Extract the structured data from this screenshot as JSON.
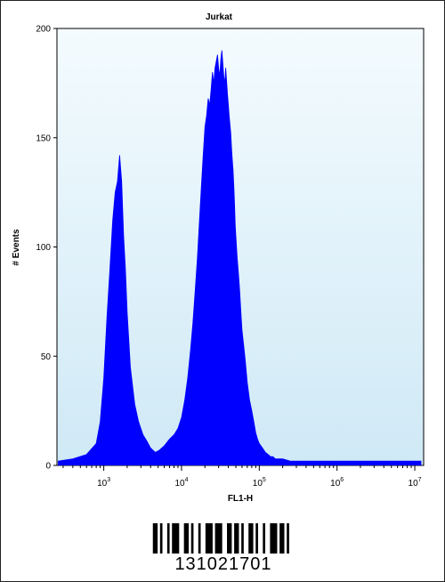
{
  "chart_data": {
    "type": "area",
    "title": "Jurkat",
    "xlabel": "FL1-H",
    "ylabel": "# Events",
    "x_scale": "log",
    "xlim": [
      250,
      13000000
    ],
    "ylim": [
      0,
      200
    ],
    "y_ticks": [
      0,
      50,
      100,
      150,
      200
    ],
    "x_ticks": [
      {
        "value": 1000,
        "base": "10",
        "exp": "3"
      },
      {
        "value": 10000,
        "base": "10",
        "exp": "4"
      },
      {
        "value": 100000,
        "base": "10",
        "exp": "5"
      },
      {
        "value": 1000000,
        "base": "10",
        "exp": "6"
      },
      {
        "value": 10000000,
        "base": "10",
        "exp": "7"
      }
    ],
    "series": [
      {
        "x": [
          260,
          400,
          600,
          800,
          900,
          1000,
          1100,
          1200,
          1300,
          1400,
          1500,
          1600,
          1700,
          1800,
          1900,
          2000,
          2200,
          2500,
          2800,
          3200,
          3600,
          4000,
          4600,
          5200,
          6000,
          7000,
          8000,
          9000,
          10000,
          11000,
          12000,
          13000,
          14000,
          15000,
          16000,
          17000,
          18000,
          19000,
          20000,
          21000,
          22000,
          23000,
          24000,
          25000,
          26000,
          27000,
          28000,
          29000,
          30000,
          31000,
          32000,
          33000,
          34000,
          35000,
          36000,
          37000,
          38000,
          39000,
          40000,
          41000,
          42000,
          43000,
          44000,
          45000,
          46000,
          47000,
          48000,
          49000,
          50000,
          52000,
          54000,
          56000,
          58000,
          60000,
          63000,
          66000,
          70000,
          75000,
          80000,
          85000,
          90000,
          95000,
          100000,
          110000,
          120000,
          130000,
          140000,
          150000,
          160000,
          180000,
          200000,
          250000,
          300000,
          400000,
          500000,
          700000,
          1000000,
          1500000,
          2000000,
          3000000,
          5000000,
          7000000,
          10000000,
          12000000
        ],
        "y": [
          2,
          3,
          5,
          10,
          20,
          40,
          68,
          90,
          112,
          125,
          130,
          142,
          130,
          105,
          90,
          70,
          45,
          28,
          20,
          14,
          11,
          8,
          6,
          7,
          9,
          12,
          14,
          17,
          22,
          30,
          40,
          52,
          65,
          80,
          95,
          112,
          128,
          142,
          155,
          160,
          168,
          165,
          172,
          180,
          175,
          182,
          185,
          188,
          182,
          178,
          186,
          190,
          184,
          178,
          175,
          182,
          176,
          170,
          165,
          160,
          156,
          152,
          145,
          140,
          135,
          128,
          120,
          110,
          105,
          95,
          88,
          80,
          70,
          62,
          55,
          48,
          38,
          30,
          25,
          20,
          15,
          12,
          10,
          8,
          6,
          5,
          4,
          4,
          3,
          3,
          3,
          2,
          2,
          2,
          2,
          2,
          2,
          2,
          2,
          2,
          2,
          2,
          2,
          2
        ]
      }
    ]
  },
  "barcode": {
    "number": "131021701"
  },
  "colors": {
    "plot_bg_top": "#f4fbfe",
    "plot_bg_bottom": "#cfe9f6",
    "fill": "#0000ff"
  }
}
